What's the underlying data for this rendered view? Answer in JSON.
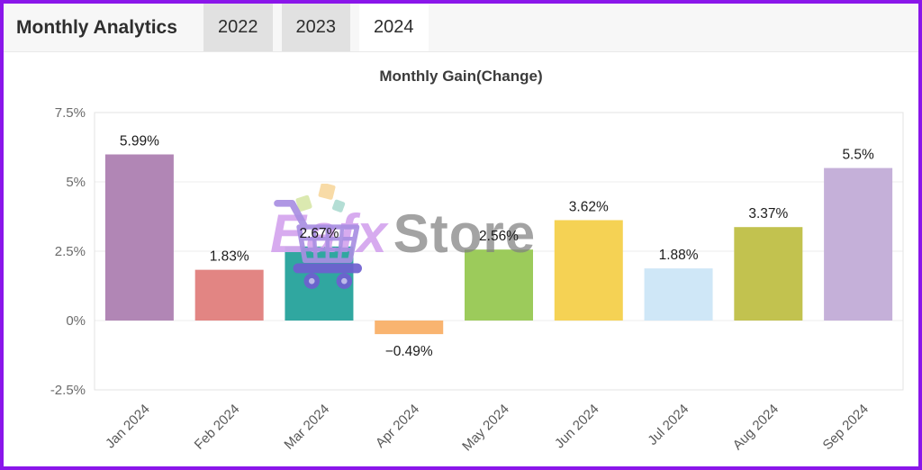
{
  "page": {
    "border_color": "#8a16ea",
    "background": "#ffffff"
  },
  "header": {
    "title": "Monthly Analytics",
    "tabs": [
      {
        "label": "2022",
        "active": false
      },
      {
        "label": "2023",
        "active": false
      },
      {
        "label": "2024",
        "active": true
      }
    ]
  },
  "watermark": {
    "brand_first": "Eafx",
    "brand_second": "Store",
    "icon": "shopping-cart-icon",
    "colors": {
      "brand_first": "#d5a6ee",
      "brand_second": "#808080",
      "cart": "#a98fe2",
      "cart_dark": "#6f5fd0",
      "confetti": [
        "#f8d9a0",
        "#d9e8aa",
        "#aedcd2"
      ]
    }
  },
  "chart_data": {
    "type": "bar",
    "title": "Monthly Gain(Change)",
    "categories": [
      "Jan 2024",
      "Feb 2024",
      "Mar 2024",
      "Apr 2024",
      "May 2024",
      "Jun 2024",
      "Jul 2024",
      "Aug 2024",
      "Sep 2024"
    ],
    "values": [
      5.99,
      1.83,
      2.67,
      -0.49,
      2.56,
      3.62,
      1.88,
      3.37,
      5.5
    ],
    "value_labels": [
      "5.99%",
      "1.83%",
      "2.67%",
      "−0.49%",
      "2.56%",
      "3.62%",
      "1.88%",
      "3.37%",
      "5.5%"
    ],
    "bar_colors": [
      "#b186b5",
      "#e28583",
      "#30a7a0",
      "#f9b470",
      "#9ccb5b",
      "#f5d254",
      "#cfe7f7",
      "#c2c24f",
      "#c5b0d9"
    ],
    "xlabel": "",
    "ylabel": "",
    "ylim": [
      -2.5,
      7.5
    ],
    "yticks": [
      7.5,
      5,
      2.5,
      0,
      -2.5
    ],
    "ytick_labels": [
      "7.5%",
      "5%",
      "2.5%",
      "0%",
      "-2.5%"
    ],
    "grid": true,
    "legend": false,
    "colors": {
      "grid": "#ededed",
      "plot_border": "#e3e3e3",
      "ytick_text": "#6b6b6b",
      "xtick_text": "#595959",
      "value_text": "#1c1c1c"
    }
  }
}
